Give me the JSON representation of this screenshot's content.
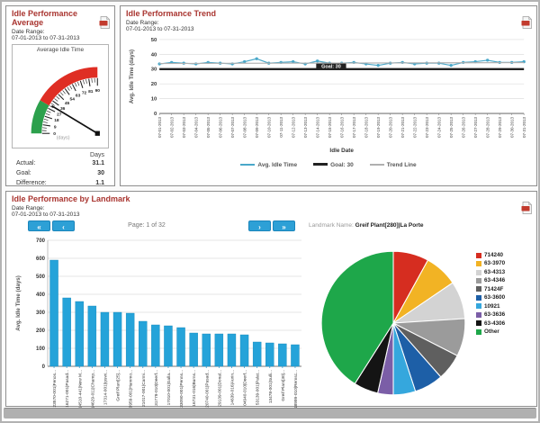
{
  "panels": {
    "average": {
      "title": "Idle Performance Average",
      "date_range_label": "Date Range:",
      "date_range": "07-01-2013 to 07-31-2013",
      "gauge_title": "Average Idle Time",
      "stats": {
        "unit_header": "Days",
        "rows": [
          {
            "label": "Actual:",
            "value": "31.1"
          },
          {
            "label": "Goal:",
            "value": "30"
          },
          {
            "label": "Difference:",
            "value": "1.1"
          }
        ]
      }
    },
    "trend": {
      "title": "Idle Performance Trend",
      "date_range_label": "Date Range:",
      "date_range": "07-01-2013 to 07-31-2013"
    },
    "landmark": {
      "title": "Idle Performance by Landmark",
      "date_range_label": "Date Range:",
      "date_range": "07-01-2013 to 07-31-2013",
      "pagination": {
        "first": "«",
        "prev": "‹",
        "status": "Page: 1 of 32",
        "next": "›",
        "last": "»"
      },
      "landmark_label": "Landmark Name:",
      "landmark_value": "Greif Plant[280]|La Porte"
    }
  },
  "chart_data": [
    {
      "id": "gauge",
      "type": "gauge",
      "title": "Average Idle Time",
      "min": 0,
      "max": 90,
      "major_tick": 9,
      "minor_tick": 3,
      "value": 31.1,
      "unit_label": "(days)",
      "zones": [
        {
          "from": 0,
          "to": 30,
          "color": "#2ca04c"
        },
        {
          "from": 30,
          "to": 90,
          "color": "#df2e24"
        }
      ]
    },
    {
      "id": "trend",
      "type": "line",
      "title": "Idle Performance Trend",
      "xlabel": "Idle Date",
      "ylabel": "Avg. Idle Time (days)",
      "ylim": [
        0,
        50
      ],
      "ytick": 10,
      "goal_label": "Goal: 30",
      "x": [
        "07-01-2013",
        "07-02-2013",
        "07-03-2013",
        "07-04-2013",
        "07-05-2013",
        "07-06-2013",
        "07-07-2013",
        "07-08-2013",
        "07-09-2013",
        "07-10-2013",
        "07-11-2013",
        "07-12-2013",
        "07-13-2013",
        "07-14-2013",
        "07-15-2013",
        "07-16-2013",
        "07-17-2013",
        "07-18-2013",
        "07-19-2013",
        "07-20-2013",
        "07-21-2013",
        "07-22-2013",
        "07-23-2013",
        "07-24-2013",
        "07-25-2013",
        "07-26-2013",
        "07-27-2013",
        "07-28-2013",
        "07-29-2013",
        "07-30-2013",
        "07-31-2013"
      ],
      "series": [
        {
          "name": "Avg. Idle Time",
          "color": "#4aa8c9",
          "values": [
            33.5,
            34.5,
            34,
            33.5,
            34.5,
            34,
            33.5,
            35,
            37,
            34,
            34.5,
            35,
            33.5,
            35.5,
            34,
            34,
            34.5,
            33.5,
            32.5,
            34,
            34.5,
            33.5,
            34,
            34,
            32.5,
            34.5,
            35,
            36,
            34.5,
            34.5,
            35
          ]
        },
        {
          "name": "Goal: 30",
          "color": "#222222",
          "goal": 30
        },
        {
          "name": "Trend Line",
          "color": "#b0b0b0",
          "trend": [
            33.8,
            34.4
          ]
        }
      ]
    },
    {
      "id": "landmark-bars",
      "type": "bar",
      "ylabel": "Avg. Idle Time (days)",
      "ylim": [
        0,
        700
      ],
      "ytick": 100,
      "bar_color": "#25a3d9",
      "categories": [
        "23570-001|Fenos...",
        "16271-001|Pasad...",
        "14510-441|New M...",
        "14629-011|Champ...",
        "17314-001|Ipswi...",
        "Greif Plant[25]...",
        "10959-001|Hammo...",
        "21017-001|Carmi...",
        "31779-010|Deerf...",
        "17010-001|Galla...",
        "33090-001|Penns...",
        "16731-016|Burns...",
        "20740-001|Pasad...",
        "29139-001|Donal...",
        "14639-016|Aurin...",
        "04940-010|Deerf...",
        "53139-001|Palat...",
        "13478-001|Sulli...",
        "Greif Plant[30]...",
        "18999-010|Remsc..."
      ],
      "values": [
        590,
        380,
        360,
        335,
        300,
        300,
        295,
        250,
        230,
        225,
        215,
        185,
        180,
        180,
        180,
        175,
        135,
        130,
        125,
        120
      ]
    },
    {
      "id": "landmark-pie",
      "type": "pie",
      "legend_position": "right",
      "slices": [
        {
          "label": "714240",
          "value": 8,
          "color": "#d62d20"
        },
        {
          "label": "63-3970",
          "value": 7.5,
          "color": "#f2b324"
        },
        {
          "label": "63-4313",
          "value": 8.5,
          "color": "#d3d3d3"
        },
        {
          "label": "63-4346",
          "value": 8.5,
          "color": "#9b9b9b"
        },
        {
          "label": "71424F",
          "value": 6,
          "color": "#5f5f5f"
        },
        {
          "label": "63-3600",
          "value": 6.5,
          "color": "#1d5fa7"
        },
        {
          "label": "10921",
          "value": 5,
          "color": "#35a7dd"
        },
        {
          "label": "63-3636",
          "value": 3.5,
          "color": "#7b5ea7"
        },
        {
          "label": "63-4306",
          "value": 5.5,
          "color": "#141414"
        },
        {
          "label": "Other",
          "value": 41,
          "color": "#1ea74a"
        }
      ]
    }
  ]
}
